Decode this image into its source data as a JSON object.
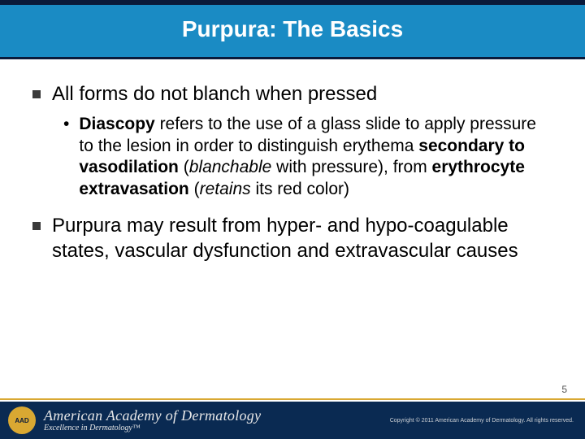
{
  "colors": {
    "title_bg": "#1a8bc4",
    "title_border": "#0a1a3a",
    "title_text": "#ffffff",
    "body_text": "#000000",
    "bullet_square": "#3a3a3a",
    "footer_bg": "#0a2a52",
    "footer_text": "#e8e8e8",
    "footer_divider": "#d9a832",
    "seal_bg": "#d9a832",
    "page_num": "#555555"
  },
  "typography": {
    "title_fontsize": 28,
    "l1_fontsize": 24,
    "l2_fontsize": 21,
    "pagenum_fontsize": 12,
    "logo_main_fontsize": 18,
    "logo_sub_fontsize": 10,
    "copyright_fontsize": 7
  },
  "title": "Purpura: The Basics",
  "bullets": [
    {
      "text": "All forms do not blanch when pressed",
      "sub": [
        {
          "parts": [
            {
              "t": "Diascopy",
              "b": true
            },
            {
              "t": " refers to the use of a glass slide to apply pressure to the lesion in order to distinguish erythema "
            },
            {
              "t": "secondary to vasodilation",
              "b": true
            },
            {
              "t": " ("
            },
            {
              "t": "blanchable",
              "i": true
            },
            {
              "t": " with pressure), from "
            },
            {
              "t": "erythrocyte extravasation",
              "b": true
            },
            {
              "t": " ("
            },
            {
              "t": "retains",
              "i": true
            },
            {
              "t": " its red color)"
            }
          ]
        }
      ]
    },
    {
      "text": "Purpura may result from hyper- and hypo-coagulable states, vascular dysfunction and extravascular causes",
      "sub": []
    }
  ],
  "page_number": "5",
  "footer": {
    "seal_text": "AAD",
    "logo_line1": "American Academy of Dermatology",
    "logo_line2": "Excellence in Dermatology™",
    "copyright": "Copyright © 2011 American Academy of Dermatology. All rights reserved."
  }
}
